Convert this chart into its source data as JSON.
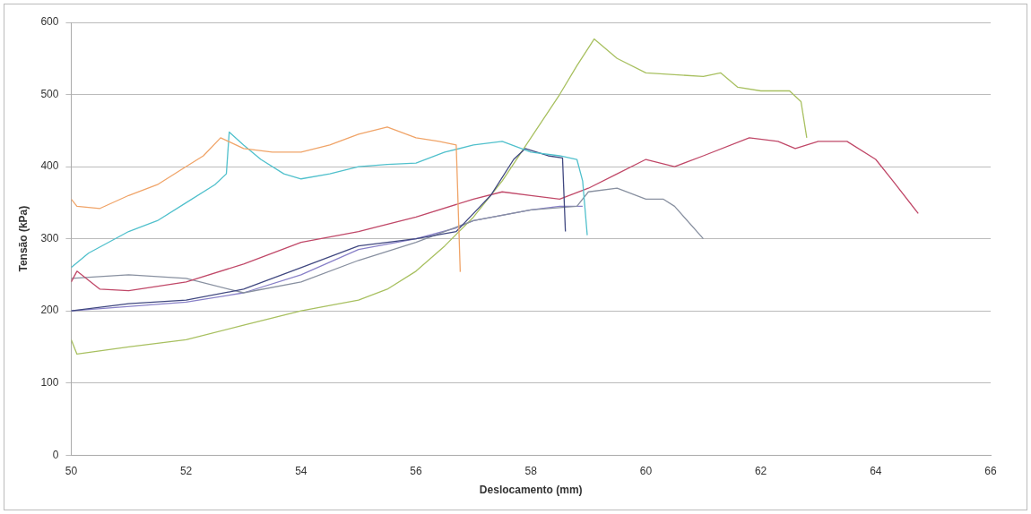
{
  "chart_data": {
    "type": "line",
    "xlabel": "Deslocamento (mm)",
    "ylabel": "Tensão (kPa)",
    "xlim": [
      50,
      66
    ],
    "xticks": [
      50,
      52,
      54,
      56,
      58,
      60,
      62,
      64,
      66
    ],
    "ylim": [
      0,
      600
    ],
    "yticks": [
      0,
      100,
      200,
      300,
      400,
      500,
      600
    ],
    "grid": "y",
    "legend": false,
    "marker": "none",
    "line_style": "solid",
    "series": [
      {
        "color": "#f0a468",
        "x": [
          50,
          50.1,
          50.5,
          51,
          51.5,
          52,
          52.3,
          52.6,
          53,
          53.5,
          54,
          54.5,
          55,
          55.5,
          56,
          56.4,
          56.7,
          56.77
        ],
        "values": [
          355,
          345,
          342,
          360,
          375,
          400,
          415,
          440,
          425,
          420,
          420,
          430,
          445,
          455,
          440,
          435,
          430,
          254
        ]
      },
      {
        "color": "#50c0cc",
        "x": [
          50,
          50.3,
          51,
          51.5,
          52,
          52.5,
          52.7,
          52.75,
          53,
          53.3,
          53.7,
          54,
          54.5,
          55,
          55.5,
          56,
          56.5,
          57,
          57.5,
          58,
          58.5,
          58.8,
          58.9,
          58.98
        ],
        "values": [
          260,
          280,
          310,
          325,
          350,
          375,
          390,
          448,
          430,
          410,
          390,
          383,
          390,
          400,
          403,
          405,
          420,
          430,
          435,
          420,
          415,
          410,
          380,
          305
        ]
      },
      {
        "color": "#404880",
        "x": [
          50,
          51,
          52,
          53,
          54,
          55,
          56,
          56.7,
          57,
          57.3,
          57.7,
          57.9,
          58.3,
          58.55,
          58.6
        ],
        "values": [
          200,
          210,
          215,
          230,
          260,
          290,
          300,
          310,
          335,
          360,
          410,
          425,
          415,
          412,
          310
        ]
      },
      {
        "color": "#c04868",
        "x": [
          50,
          50.1,
          50.5,
          51,
          52,
          53,
          54,
          55,
          56,
          57,
          57.5,
          58,
          58.5,
          59,
          59.5,
          60,
          60.5,
          61,
          61.8,
          62.3,
          62.6,
          63,
          63.5,
          64,
          64.3,
          64.74
        ],
        "values": [
          240,
          255,
          230,
          228,
          240,
          265,
          295,
          310,
          330,
          355,
          365,
          360,
          355,
          370,
          390,
          410,
          400,
          415,
          440,
          435,
          425,
          435,
          435,
          410,
          380,
          335
        ]
      },
      {
        "color": "#8890a0",
        "x": [
          50,
          51,
          52,
          53,
          54,
          55,
          56,
          57,
          58,
          58.8,
          59,
          59.5,
          60,
          60.3,
          60.5,
          61
        ],
        "values": [
          245,
          250,
          245,
          225,
          240,
          270,
          295,
          325,
          340,
          345,
          365,
          370,
          355,
          355,
          345,
          300
        ]
      },
      {
        "color": "#a8c060",
        "x": [
          50,
          50.1,
          51,
          52,
          53,
          54,
          55,
          55.5,
          56,
          56.5,
          57,
          57.5,
          58,
          58.5,
          58.8,
          59.1,
          59.5,
          60,
          61,
          61.3,
          61.6,
          62,
          62.5,
          62.7,
          62.8
        ],
        "values": [
          160,
          140,
          150,
          160,
          180,
          200,
          215,
          230,
          255,
          290,
          330,
          380,
          440,
          500,
          540,
          577,
          550,
          530,
          525,
          530,
          510,
          505,
          505,
          490,
          440
        ]
      },
      {
        "color": "#8880c8",
        "x": [
          50,
          52,
          53,
          54,
          55,
          56,
          56.7,
          57,
          58,
          58.5,
          58.9
        ],
        "values": [
          200,
          212,
          225,
          250,
          285,
          300,
          315,
          325,
          340,
          345,
          345
        ]
      }
    ]
  }
}
